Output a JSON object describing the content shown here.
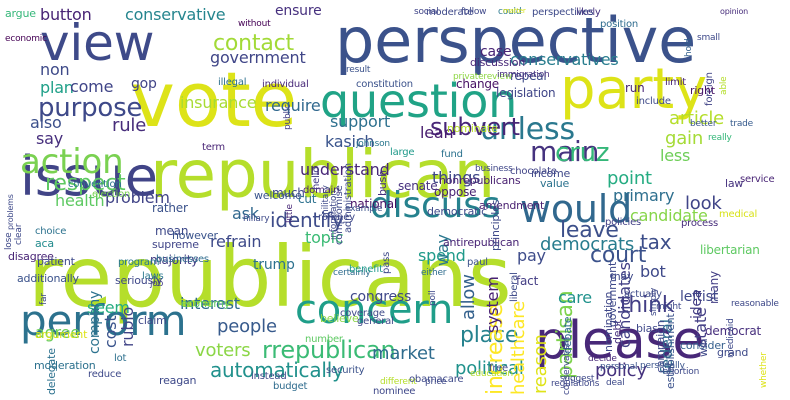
{
  "cloud": {
    "words": [
      {
        "text": "republicans",
        "color": "#b5de2b"
      },
      {
        "text": "republican",
        "color": "#b5de2b"
      },
      {
        "text": "vote",
        "color": "#dde318"
      },
      {
        "text": "perspective",
        "color": "#3b528b"
      },
      {
        "text": "party",
        "color": "#dde318"
      },
      {
        "text": "issue",
        "color": "#414487"
      },
      {
        "text": "view",
        "color": "#3e4a89"
      },
      {
        "text": "please",
        "color": "#482878"
      },
      {
        "text": "question",
        "color": "#20a386"
      },
      {
        "text": "concern",
        "color": "#1f9e89"
      },
      {
        "text": "discuss",
        "color": "#26828e"
      },
      {
        "text": "would",
        "color": "#31688e"
      },
      {
        "text": "perform",
        "color": "#2c728e"
      },
      {
        "text": "action",
        "color": "#7ad151"
      },
      {
        "text": "rrepublican",
        "color": "#3bbb75"
      },
      {
        "text": "purpose",
        "color": "#3e4989"
      },
      {
        "text": "unless",
        "color": "#2a788e"
      },
      {
        "text": "main",
        "color": "#46337f"
      },
      {
        "text": "contact",
        "color": "#a2da37"
      },
      {
        "text": "respect",
        "color": "#5ec962"
      },
      {
        "text": "cruz",
        "color": "#35b779"
      },
      {
        "text": "subvert",
        "color": "#482677"
      },
      {
        "text": "identify",
        "color": "#3e4c8a"
      },
      {
        "text": "automatically",
        "color": "#21918c"
      },
      {
        "text": "government",
        "color": "#404688"
      },
      {
        "text": "conservative",
        "color": "#25858e"
      },
      {
        "text": "button",
        "color": "#482475"
      },
      {
        "text": "insurance",
        "color": "#a8db34"
      },
      {
        "text": "conservatives",
        "color": "#287d8e"
      },
      {
        "text": "leave",
        "color": "#3c4f8a"
      },
      {
        "text": "think",
        "color": "#433e85"
      },
      {
        "text": "partisan",
        "color": "#7fd34e"
      },
      {
        "text": "democrats",
        "color": "#287c8e"
      },
      {
        "text": "political",
        "color": "#20928c"
      },
      {
        "text": "policy",
        "color": "#46327e"
      },
      {
        "text": "market",
        "color": "#2f6c8e"
      },
      {
        "text": "place",
        "color": "#26828e"
      },
      {
        "text": "court",
        "color": "#3b528b"
      },
      {
        "text": "tax",
        "color": "#3d4e8a"
      },
      {
        "text": "rule",
        "color": "#472d7b"
      },
      {
        "text": "support",
        "color": "#2d708e"
      },
      {
        "text": "lean",
        "color": "#481d6f"
      },
      {
        "text": "kasich",
        "color": "#3a548c"
      },
      {
        "text": "ensure",
        "color": "#46307e"
      },
      {
        "text": "require",
        "color": "#31688e"
      },
      {
        "text": "refrain",
        "color": "#3e4a89"
      },
      {
        "text": "trump",
        "color": "#2c718e"
      },
      {
        "text": "ask",
        "color": "#31688e"
      },
      {
        "text": "understand",
        "color": "#482878"
      },
      {
        "text": "people",
        "color": "#375a8c"
      },
      {
        "text": "voters",
        "color": "#8bd646"
      },
      {
        "text": "agree",
        "color": "#6ccd5a"
      },
      {
        "text": "plan",
        "color": "#1fa088"
      },
      {
        "text": "non",
        "color": "#3e4a89"
      },
      {
        "text": "gop",
        "color": "#414487"
      },
      {
        "text": "come",
        "color": "#404588"
      },
      {
        "text": "also",
        "color": "#3c508b"
      },
      {
        "text": "say",
        "color": "#472f7d"
      },
      {
        "text": "health",
        "color": "#5ec962"
      },
      {
        "text": "problem",
        "color": "#414487"
      },
      {
        "text": "topic",
        "color": "#3bbb75"
      },
      {
        "text": "article",
        "color": "#b5de2b"
      },
      {
        "text": "gain",
        "color": "#a5db36"
      },
      {
        "text": "less",
        "color": "#6ece58"
      },
      {
        "text": "candidate",
        "color": "#86d549"
      },
      {
        "text": "look",
        "color": "#404588"
      },
      {
        "text": "point",
        "color": "#25ac82"
      },
      {
        "text": "primary",
        "color": "#2e6f8e"
      },
      {
        "text": "things",
        "color": "#3f4788"
      },
      {
        "text": "allow",
        "color": "#34618d"
      },
      {
        "text": "increase",
        "color": "#fde725"
      },
      {
        "text": "spend",
        "color": "#1f9a8a"
      },
      {
        "text": "pay",
        "color": "#3e4c8a"
      },
      {
        "text": "care",
        "color": "#20928c"
      },
      {
        "text": "state",
        "color": "#433e85"
      },
      {
        "text": "federal",
        "color": "#2e6e8e"
      },
      {
        "text": "candidates",
        "color": "#424086"
      },
      {
        "text": "bot",
        "color": "#3e4989"
      },
      {
        "text": "reason",
        "color": "#dfe318"
      },
      {
        "text": "case",
        "color": "#482475"
      },
      {
        "text": "interest",
        "color": "#2f6b8e"
      },
      {
        "text": "seem",
        "color": "#26ad81"
      },
      {
        "text": "rubio",
        "color": "#414487"
      },
      {
        "text": "company",
        "color": "#2c728e"
      },
      {
        "text": "cost",
        "color": "#3a548c"
      },
      {
        "text": "healthcare",
        "color": "#fde725"
      },
      {
        "text": "system",
        "color": "#482173"
      },
      {
        "text": "congress",
        "color": "#3f4889"
      },
      {
        "text": "way",
        "color": "#2a778e"
      },
      {
        "text": "change",
        "color": "#471164"
      },
      {
        "text": "repeal",
        "color": "#3e4c8a"
      },
      {
        "text": "economic",
        "color": "#440154"
      },
      {
        "text": "argue",
        "color": "#35b779"
      },
      {
        "text": "without",
        "color": "#440154"
      },
      {
        "text": "illegal",
        "color": "#2d708e"
      },
      {
        "text": "individual",
        "color": "#482878"
      },
      {
        "text": "constitution",
        "color": "#3b528b"
      },
      {
        "text": "business",
        "color": "#3f4788"
      },
      {
        "text": "chocolate",
        "color": "#414487"
      },
      {
        "text": "mean",
        "color": "#3e4989"
      },
      {
        "text": "majority",
        "color": "#433d84"
      },
      {
        "text": "supreme",
        "color": "#404588"
      },
      {
        "text": "disagree",
        "color": "#482576"
      },
      {
        "text": "laws",
        "color": "#2a788e"
      },
      {
        "text": "additionally",
        "color": "#3b528b"
      },
      {
        "text": "aca",
        "color": "#228b8d"
      },
      {
        "text": "choice",
        "color": "#2c728e"
      },
      {
        "text": "moderate",
        "color": "#3e4989"
      },
      {
        "text": "position",
        "color": "#2f6c8e"
      },
      {
        "text": "likely",
        "color": "#46327e"
      },
      {
        "text": "perspectives",
        "color": "#3e4a89"
      },
      {
        "text": "could",
        "color": "#2a788e"
      },
      {
        "text": "follow",
        "color": "#3f4889"
      },
      {
        "text": "social",
        "color": "#404588"
      },
      {
        "text": "matter",
        "color": "#d8e219"
      },
      {
        "text": "opinion",
        "color": "#472d7b"
      },
      {
        "text": "foreign",
        "color": "#414487"
      },
      {
        "text": "limit",
        "color": "#482475"
      },
      {
        "text": "run",
        "color": "#482576"
      },
      {
        "text": "include",
        "color": "#3e4a89"
      },
      {
        "text": "right",
        "color": "#481467"
      },
      {
        "text": "trade",
        "color": "#375b8d"
      },
      {
        "text": "better",
        "color": "#3a548c"
      },
      {
        "text": "service",
        "color": "#482475"
      },
      {
        "text": "law",
        "color": "#46337f"
      },
      {
        "text": "libertarian",
        "color": "#5ec962"
      },
      {
        "text": "many",
        "color": "#433e85"
      },
      {
        "text": "leftist",
        "color": "#3f4889"
      },
      {
        "text": "idea",
        "color": "#433d84"
      },
      {
        "text": "democrat",
        "color": "#472f7d"
      },
      {
        "text": "consider",
        "color": "#355f8d"
      },
      {
        "text": "establishment",
        "color": "#3b528b"
      },
      {
        "text": "campaign",
        "color": "#3f4889"
      },
      {
        "text": "personally",
        "color": "#3a548c"
      },
      {
        "text": "personal",
        "color": "#3a548c"
      },
      {
        "text": "decide",
        "color": "#482878"
      },
      {
        "text": "debt",
        "color": "#46307e"
      },
      {
        "text": "nomination",
        "color": "#3f4788"
      },
      {
        "text": "policies",
        "color": "#424086"
      },
      {
        "text": "nonrepublicans",
        "color": "#481f70"
      },
      {
        "text": "antirepublican",
        "color": "#482475"
      },
      {
        "text": "debate",
        "color": "#2f6c8e"
      },
      {
        "text": "value",
        "color": "#2c728e"
      },
      {
        "text": "income",
        "color": "#3f4889"
      },
      {
        "text": "democratic",
        "color": "#3e4a89"
      },
      {
        "text": "amendment",
        "color": "#481f70"
      },
      {
        "text": "national",
        "color": "#471164"
      },
      {
        "text": "oppose",
        "color": "#482173"
      },
      {
        "text": "senate",
        "color": "#46307e"
      },
      {
        "text": "bush",
        "color": "#46307e"
      },
      {
        "text": "much",
        "color": "#3e4989"
      },
      {
        "text": "cut",
        "color": "#2c718e"
      },
      {
        "text": "public",
        "color": "#433e85"
      },
      {
        "text": "little",
        "color": "#482878"
      },
      {
        "text": "domain",
        "color": "#481f70"
      },
      {
        "text": "compromise",
        "color": "#3e4989"
      },
      {
        "text": "large",
        "color": "#1f9a8a"
      },
      {
        "text": "johnson",
        "color": "#2a778e"
      },
      {
        "text": "result",
        "color": "#3b528b"
      },
      {
        "text": "discussion",
        "color": "#482878"
      },
      {
        "text": "privatereview",
        "color": "#8fd744"
      },
      {
        "text": "legislation",
        "color": "#404688"
      },
      {
        "text": "immigration",
        "color": "#46307e"
      },
      {
        "text": "nominate",
        "color": "#b8de29"
      },
      {
        "text": "fund",
        "color": "#2c728e"
      },
      {
        "text": "really",
        "color": "#35b779"
      },
      {
        "text": "able",
        "color": "#b5de2b"
      },
      {
        "text": "small",
        "color": "#3e4989"
      },
      {
        "text": "hold",
        "color": "#34618d"
      },
      {
        "text": "medical",
        "color": "#d8e219"
      },
      {
        "text": "process",
        "color": "#472d7b"
      },
      {
        "text": "hillary",
        "color": "#3e4a89"
      },
      {
        "text": "term",
        "color": "#482475"
      },
      {
        "text": "welcome",
        "color": "#3a548c"
      },
      {
        "text": "rather",
        "color": "#3b528b"
      },
      {
        "text": "however",
        "color": "#3a548c"
      },
      {
        "text": "businesses",
        "color": "#2f6c8e"
      },
      {
        "text": "convention",
        "color": "#2c718e"
      },
      {
        "text": "election",
        "color": "#7ad151"
      },
      {
        "text": "program",
        "color": "#2a788e"
      },
      {
        "text": "seriously",
        "color": "#3f4889"
      },
      {
        "text": "economy",
        "color": "#5ec962"
      },
      {
        "text": "claim",
        "color": "#3f4889"
      },
      {
        "text": "lot",
        "color": "#2d708e"
      },
      {
        "text": "job",
        "color": "#433e85"
      },
      {
        "text": "number",
        "color": "#5ec962"
      },
      {
        "text": "coverage",
        "color": "#3e4989"
      },
      {
        "text": "believe",
        "color": "#8bd646"
      },
      {
        "text": "general",
        "color": "#3f4889"
      },
      {
        "text": "certainly",
        "color": "#2f6c8e"
      },
      {
        "text": "benefit",
        "color": "#1f9a8a"
      },
      {
        "text": "pass",
        "color": "#3e4989"
      },
      {
        "text": "either",
        "color": "#2f6c8e"
      },
      {
        "text": "poll",
        "color": "#3e4989"
      },
      {
        "text": "paul",
        "color": "#3b528b"
      },
      {
        "text": "principles",
        "color": "#3e4989"
      },
      {
        "text": "liberal",
        "color": "#3e4a89"
      },
      {
        "text": "fact",
        "color": "#433d84"
      },
      {
        "text": "military",
        "color": "#3e4a89"
      },
      {
        "text": "hello",
        "color": "#433e85"
      },
      {
        "text": "romney",
        "color": "#3f4889"
      },
      {
        "text": "example",
        "color": "#3b528b"
      },
      {
        "text": "information",
        "color": "#3f4889"
      },
      {
        "text": "administration",
        "color": "#3e4989"
      },
      {
        "text": "patient",
        "color": "#3e4a89"
      },
      {
        "text": "delegate",
        "color": "#2c718e"
      },
      {
        "text": "argument",
        "color": "#dde318"
      },
      {
        "text": "moderation",
        "color": "#2c718e"
      },
      {
        "text": "reduce",
        "color": "#3e4989"
      },
      {
        "text": "reagan",
        "color": "#3e4989"
      },
      {
        "text": "instead",
        "color": "#3e4a89"
      },
      {
        "text": "budget",
        "color": "#2f6c8e"
      },
      {
        "text": "security",
        "color": "#3b528b"
      },
      {
        "text": "nominee",
        "color": "#3f4889"
      },
      {
        "text": "different",
        "color": "#b5de2b"
      },
      {
        "text": "obamacare",
        "color": "#3e4989"
      },
      {
        "text": "price",
        "color": "#3e4989"
      },
      {
        "text": "education",
        "color": "#b5de2b"
      },
      {
        "text": "free",
        "color": "#3e4989"
      },
      {
        "text": "regulations",
        "color": "#3f4889"
      },
      {
        "text": "suggest",
        "color": "#3e4989"
      },
      {
        "text": "conservatism",
        "color": "#3f4889"
      },
      {
        "text": "government",
        "color": "#3e4989"
      },
      {
        "text": "may",
        "color": "#3e4989"
      },
      {
        "text": "deal",
        "color": "#3e4a89"
      },
      {
        "text": "win",
        "color": "#3f4889"
      },
      {
        "text": "grand",
        "color": "#3e4a89"
      },
      {
        "text": "whether",
        "color": "#dde318"
      },
      {
        "text": "medicaid",
        "color": "#3e4989"
      },
      {
        "text": "simply",
        "color": "#3e4989"
      },
      {
        "text": "actually",
        "color": "#3e4a89"
      },
      {
        "text": "bias",
        "color": "#3f4889"
      },
      {
        "text": "reasonable",
        "color": "#3e4989"
      },
      {
        "text": "abortion",
        "color": "#3e4989"
      },
      {
        "text": "might",
        "color": "#3e4989"
      },
      {
        "text": "lose",
        "color": "#3e4989"
      },
      {
        "text": "clear",
        "color": "#3e4989"
      },
      {
        "text": "far",
        "color": "#3e4989"
      },
      {
        "text": "problems",
        "color": "#3e4989"
      }
    ]
  }
}
